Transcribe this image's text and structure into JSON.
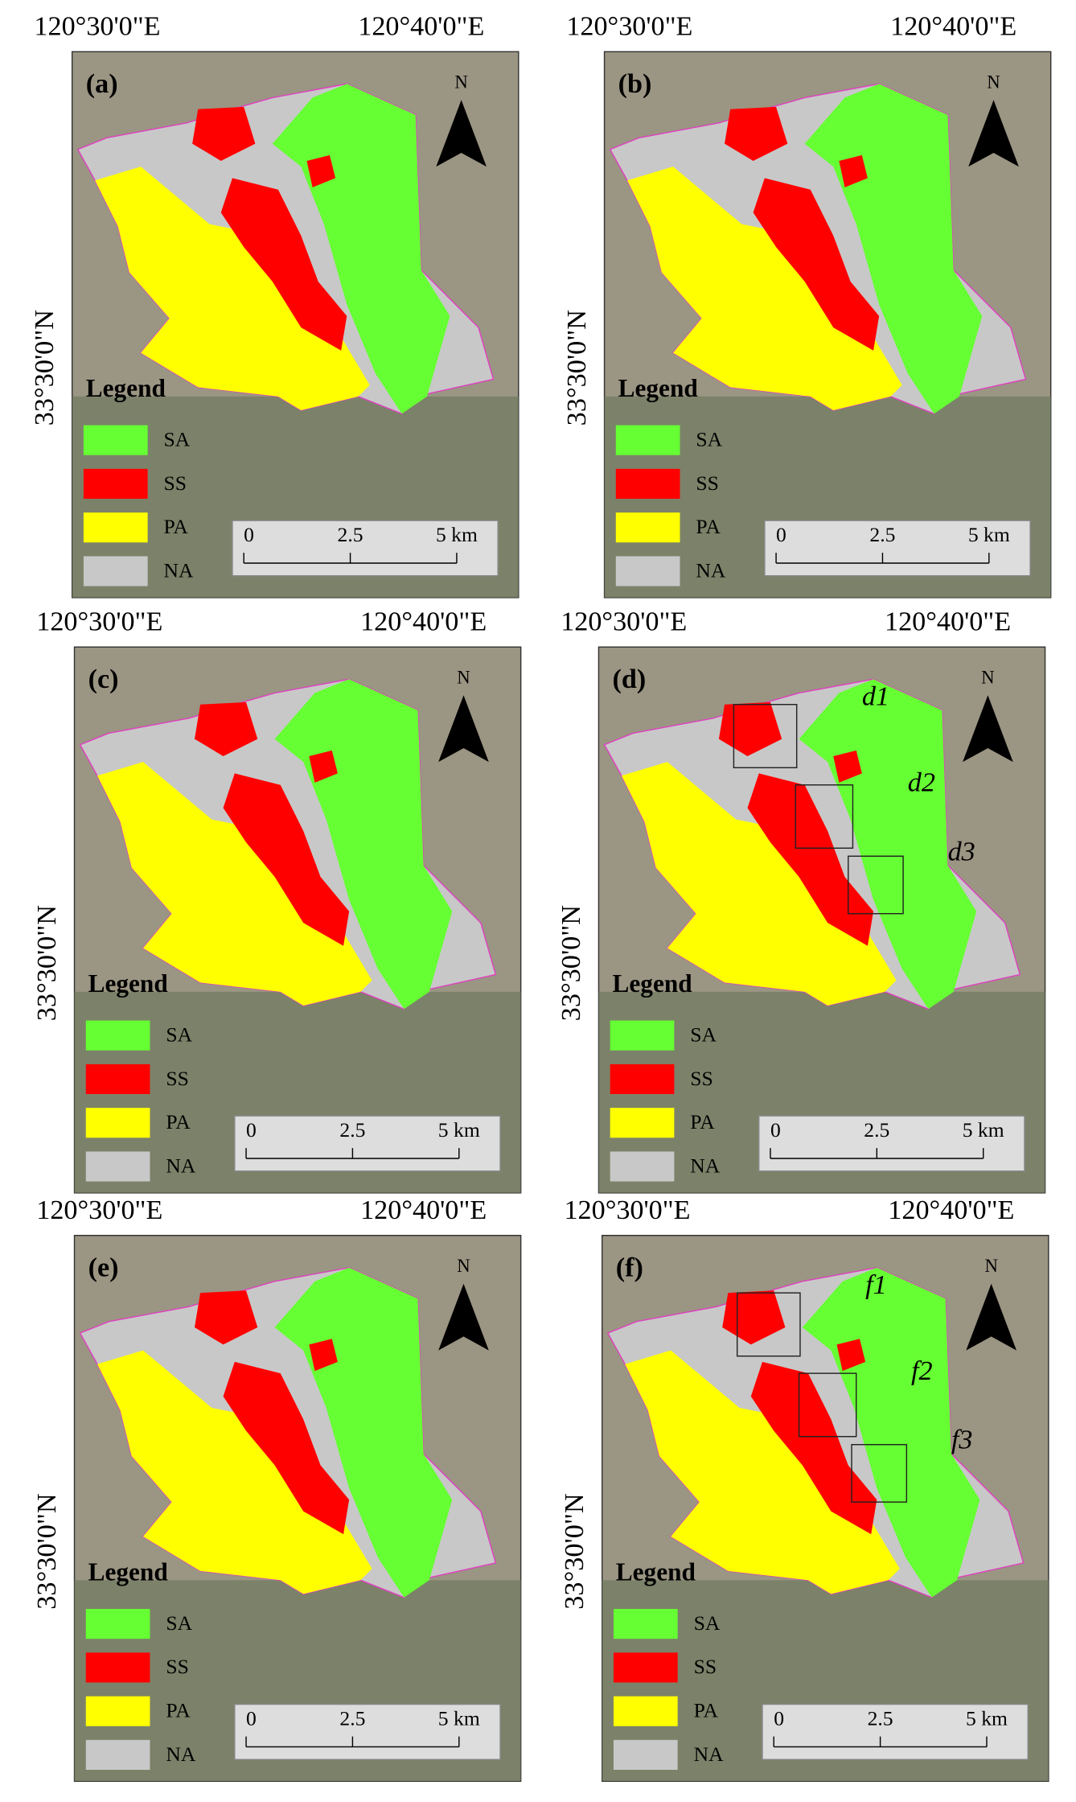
{
  "lon_labels": [
    "120°30'0\"E",
    "120°40'0\"E"
  ],
  "lat_label": "33°30'0\"N",
  "north": "N",
  "legend": {
    "title": "Legend",
    "items": [
      {
        "label": "SA",
        "color": "#66ff33"
      },
      {
        "label": "SS",
        "color": "#ff0000"
      },
      {
        "label": "PA",
        "color": "#ffff00"
      },
      {
        "label": "NA",
        "color": "#c8c8c8"
      }
    ]
  },
  "scale_bar": [
    "0",
    "2.5",
    "5 km"
  ],
  "panels": [
    {
      "label": "(a)",
      "annotations": []
    },
    {
      "label": "(b)",
      "annotations": []
    },
    {
      "label": "(c)",
      "annotations": []
    },
    {
      "label": "(d)",
      "annotations": [
        "d1",
        "d2",
        "d3"
      ]
    },
    {
      "label": "(e)",
      "annotations": []
    },
    {
      "label": "(f)",
      "annotations": [
        "f1",
        "f2",
        "f3"
      ]
    }
  ]
}
